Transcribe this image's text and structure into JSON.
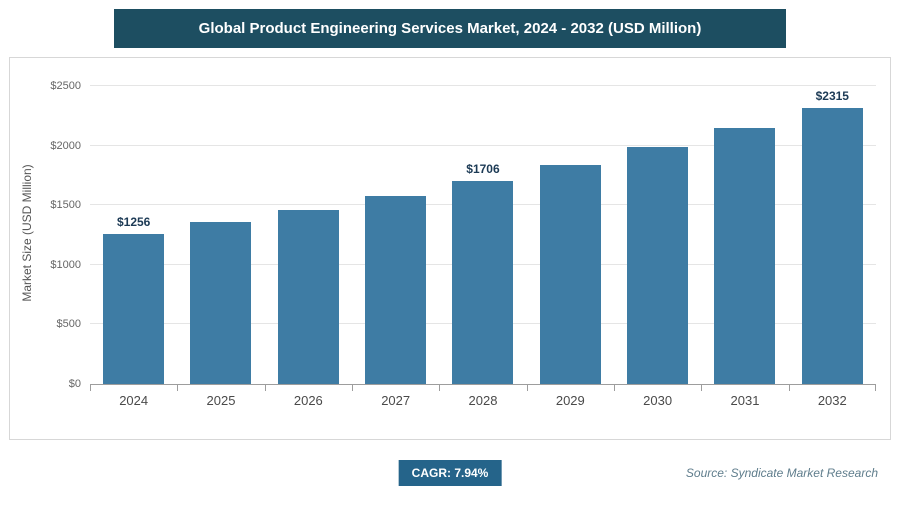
{
  "header": {
    "title": "Global Product Engineering Services Market, 2024 - 2032 (USD Million)"
  },
  "footer": {
    "cagr_label": "CAGR: 7.94%",
    "source": "Source: Syndicate Market Research"
  },
  "chart_data": {
    "type": "bar",
    "title": "Global Product Engineering Services Market, 2024 - 2032 (USD Million)",
    "categories": [
      "2024",
      "2025",
      "2026",
      "2027",
      "2028",
      "2029",
      "2030",
      "2031",
      "2032"
    ],
    "values": [
      1256,
      1356,
      1463,
      1580,
      1706,
      1841,
      1987,
      2145,
      2315
    ],
    "data_labels": [
      "$1256",
      "",
      "",
      "",
      "$1706",
      "",
      "",
      "",
      "$2315"
    ],
    "xlabel": "",
    "ylabel": "Market Size (USD Million)",
    "ylim": [
      0,
      2500
    ],
    "ytick_step": 500,
    "ytick_labels": [
      "$0",
      "$500",
      "$1000",
      "$1500",
      "$2000",
      "$2500"
    ],
    "grid": true,
    "legend": "none",
    "cagr": "7.94%",
    "colors": {
      "header_bg": "#1d4e61",
      "bar": "#3e7ca4",
      "badge_bg": "#25648a",
      "source_text": "#5f7d8c"
    }
  }
}
